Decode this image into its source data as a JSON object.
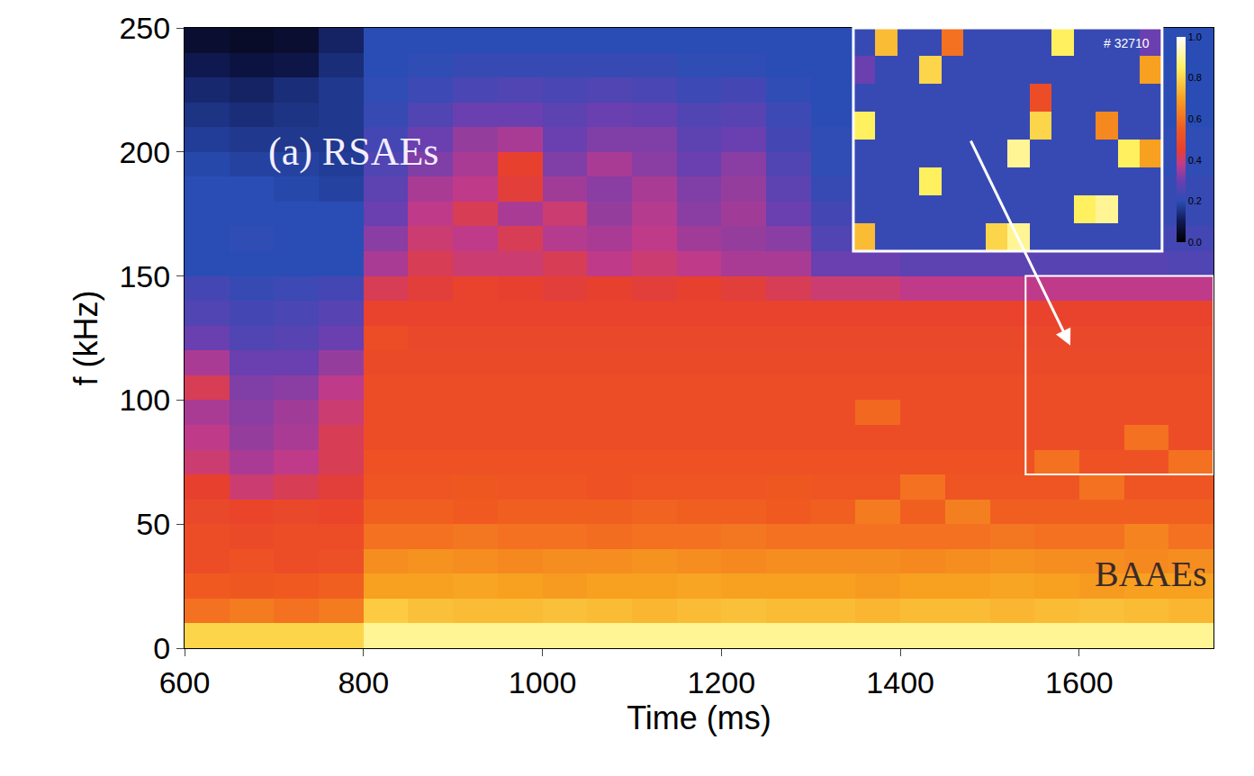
{
  "chart_data": [
    {
      "type": "heatmap",
      "x_label": "Time (ms)",
      "y_label": "f (kHz)",
      "x": [
        625,
        675,
        725,
        775,
        825,
        875,
        925,
        975,
        1025,
        1075,
        1125,
        1175,
        1225,
        1275,
        1325,
        1375,
        1425,
        1475,
        1525,
        1575,
        1625,
        1675,
        1725
      ],
      "y": [
        5,
        15,
        25,
        35,
        45,
        55,
        65,
        75,
        85,
        95,
        105,
        115,
        125,
        135,
        145,
        155,
        165,
        175,
        185,
        195,
        205,
        215,
        225,
        235,
        245
      ],
      "values": [
        [
          0.8,
          0.8,
          0.8,
          0.8,
          0.9,
          0.9,
          0.9,
          0.9,
          0.9,
          0.9,
          0.9,
          0.9,
          0.9,
          0.9,
          0.9,
          0.9,
          0.9,
          0.9,
          0.9,
          0.9,
          0.9,
          0.9,
          0.9
        ],
        [
          0.6,
          0.62,
          0.6,
          0.62,
          0.78,
          0.76,
          0.75,
          0.75,
          0.76,
          0.75,
          0.74,
          0.75,
          0.76,
          0.75,
          0.75,
          0.74,
          0.75,
          0.75,
          0.74,
          0.75,
          0.76,
          0.75,
          0.74
        ],
        [
          0.55,
          0.54,
          0.55,
          0.56,
          0.7,
          0.7,
          0.71,
          0.7,
          0.69,
          0.7,
          0.7,
          0.71,
          0.7,
          0.7,
          0.7,
          0.69,
          0.7,
          0.7,
          0.71,
          0.7,
          0.69,
          0.7,
          0.7
        ],
        [
          0.5,
          0.52,
          0.5,
          0.51,
          0.66,
          0.67,
          0.66,
          0.65,
          0.66,
          0.66,
          0.67,
          0.66,
          0.65,
          0.66,
          0.66,
          0.66,
          0.65,
          0.66,
          0.67,
          0.66,
          0.66,
          0.65,
          0.66
        ],
        [
          0.5,
          0.49,
          0.5,
          0.5,
          0.6,
          0.6,
          0.61,
          0.6,
          0.6,
          0.59,
          0.6,
          0.6,
          0.61,
          0.6,
          0.6,
          0.6,
          0.6,
          0.6,
          0.61,
          0.6,
          0.6,
          0.64,
          0.6
        ],
        [
          0.48,
          0.47,
          0.48,
          0.47,
          0.56,
          0.56,
          0.55,
          0.56,
          0.56,
          0.56,
          0.57,
          0.56,
          0.56,
          0.55,
          0.56,
          0.62,
          0.56,
          0.63,
          0.56,
          0.56,
          0.56,
          0.56,
          0.56
        ],
        [
          0.45,
          0.4,
          0.42,
          0.44,
          0.53,
          0.53,
          0.54,
          0.53,
          0.53,
          0.52,
          0.53,
          0.53,
          0.53,
          0.54,
          0.53,
          0.53,
          0.6,
          0.53,
          0.53,
          0.53,
          0.6,
          0.53,
          0.53
        ],
        [
          0.4,
          0.36,
          0.38,
          0.42,
          0.52,
          0.52,
          0.52,
          0.52,
          0.52,
          0.52,
          0.52,
          0.52,
          0.52,
          0.52,
          0.52,
          0.52,
          0.52,
          0.52,
          0.52,
          0.6,
          0.52,
          0.52,
          0.6
        ],
        [
          0.38,
          0.34,
          0.36,
          0.42,
          0.5,
          0.5,
          0.5,
          0.5,
          0.5,
          0.5,
          0.5,
          0.5,
          0.5,
          0.5,
          0.5,
          0.5,
          0.5,
          0.5,
          0.5,
          0.5,
          0.5,
          0.6,
          0.5
        ],
        [
          0.36,
          0.33,
          0.35,
          0.4,
          0.5,
          0.5,
          0.5,
          0.5,
          0.5,
          0.5,
          0.5,
          0.5,
          0.5,
          0.5,
          0.5,
          0.58,
          0.5,
          0.5,
          0.5,
          0.5,
          0.5,
          0.5,
          0.5
        ],
        [
          0.42,
          0.32,
          0.33,
          0.38,
          0.5,
          0.5,
          0.5,
          0.5,
          0.5,
          0.5,
          0.5,
          0.5,
          0.5,
          0.5,
          0.5,
          0.5,
          0.5,
          0.5,
          0.5,
          0.5,
          0.5,
          0.5,
          0.5
        ],
        [
          0.36,
          0.3,
          0.3,
          0.34,
          0.49,
          0.49,
          0.49,
          0.49,
          0.49,
          0.49,
          0.49,
          0.49,
          0.49,
          0.49,
          0.49,
          0.49,
          0.49,
          0.49,
          0.49,
          0.49,
          0.49,
          0.49,
          0.49
        ],
        [
          0.3,
          0.26,
          0.27,
          0.3,
          0.5,
          0.48,
          0.48,
          0.48,
          0.48,
          0.48,
          0.48,
          0.48,
          0.48,
          0.48,
          0.48,
          0.48,
          0.48,
          0.48,
          0.48,
          0.48,
          0.48,
          0.48,
          0.48
        ],
        [
          0.26,
          0.24,
          0.25,
          0.27,
          0.46,
          0.46,
          0.46,
          0.46,
          0.46,
          0.46,
          0.46,
          0.46,
          0.46,
          0.46,
          0.46,
          0.46,
          0.46,
          0.46,
          0.46,
          0.46,
          0.46,
          0.46,
          0.46
        ],
        [
          0.24,
          0.22,
          0.23,
          0.24,
          0.42,
          0.44,
          0.46,
          0.45,
          0.44,
          0.45,
          0.44,
          0.45,
          0.44,
          0.42,
          0.4,
          0.4,
          0.38,
          0.38,
          0.38,
          0.38,
          0.38,
          0.38,
          0.38
        ],
        [
          0.2,
          0.2,
          0.2,
          0.2,
          0.36,
          0.42,
          0.4,
          0.4,
          0.42,
          0.38,
          0.4,
          0.38,
          0.36,
          0.36,
          0.3,
          0.3,
          0.28,
          0.28,
          0.28,
          0.27,
          0.27,
          0.27,
          0.26
        ],
        [
          0.2,
          0.21,
          0.2,
          0.2,
          0.33,
          0.4,
          0.38,
          0.42,
          0.37,
          0.36,
          0.38,
          0.35,
          0.34,
          0.33,
          0.26,
          0.25,
          0.25,
          0.24,
          0.24,
          0.24,
          0.24,
          0.24,
          0.24
        ],
        [
          0.2,
          0.2,
          0.2,
          0.2,
          0.3,
          0.38,
          0.42,
          0.36,
          0.4,
          0.34,
          0.37,
          0.33,
          0.35,
          0.3,
          0.24,
          0.23,
          0.23,
          0.22,
          0.22,
          0.22,
          0.22,
          0.22,
          0.22
        ],
        [
          0.2,
          0.2,
          0.19,
          0.18,
          0.28,
          0.36,
          0.38,
          0.44,
          0.35,
          0.33,
          0.36,
          0.32,
          0.34,
          0.28,
          0.22,
          0.22,
          0.22,
          0.22,
          0.22,
          0.22,
          0.22,
          0.22,
          0.22
        ],
        [
          0.19,
          0.18,
          0.18,
          0.17,
          0.26,
          0.32,
          0.36,
          0.45,
          0.32,
          0.36,
          0.33,
          0.3,
          0.33,
          0.26,
          0.21,
          0.21,
          0.21,
          0.21,
          0.21,
          0.21,
          0.21,
          0.21,
          0.21
        ],
        [
          0.17,
          0.16,
          0.16,
          0.16,
          0.24,
          0.3,
          0.34,
          0.36,
          0.3,
          0.32,
          0.32,
          0.28,
          0.3,
          0.24,
          0.21,
          0.21,
          0.21,
          0.21,
          0.21,
          0.21,
          0.21,
          0.21,
          0.21
        ],
        [
          0.15,
          0.14,
          0.15,
          0.16,
          0.22,
          0.26,
          0.3,
          0.3,
          0.28,
          0.3,
          0.29,
          0.26,
          0.27,
          0.23,
          0.2,
          0.2,
          0.2,
          0.2,
          0.2,
          0.2,
          0.2,
          0.2,
          0.2
        ],
        [
          0.13,
          0.12,
          0.14,
          0.16,
          0.21,
          0.23,
          0.25,
          0.26,
          0.25,
          0.26,
          0.25,
          0.23,
          0.24,
          0.21,
          0.2,
          0.2,
          0.2,
          0.2,
          0.2,
          0.2,
          0.2,
          0.2,
          0.2
        ],
        [
          0.1,
          0.08,
          0.09,
          0.14,
          0.2,
          0.21,
          0.22,
          0.22,
          0.22,
          0.22,
          0.22,
          0.21,
          0.21,
          0.2,
          0.2,
          0.2,
          0.2,
          0.2,
          0.2,
          0.2,
          0.2,
          0.2,
          0.2
        ],
        [
          0.06,
          0.05,
          0.06,
          0.12,
          0.2,
          0.2,
          0.2,
          0.2,
          0.2,
          0.2,
          0.2,
          0.2,
          0.2,
          0.2,
          0.2,
          0.2,
          0.2,
          0.2,
          0.2,
          0.2,
          0.2,
          0.2,
          0.2
        ]
      ],
      "xlim": [
        600,
        1750
      ],
      "ylim": [
        0,
        250
      ],
      "xticks": [
        600,
        800,
        1000,
        1200,
        1400,
        1600
      ],
      "yticks": [
        0,
        50,
        100,
        150,
        200,
        250
      ],
      "annotations": [
        "(a) RSAEs",
        "BAAEs"
      ]
    },
    {
      "type": "heatmap",
      "x": [
        1547.5,
        1562.5,
        1577.5,
        1592.5,
        1607.5,
        1622.5,
        1637.5,
        1652.5,
        1667.5,
        1682.5,
        1697.5,
        1712.5,
        1727.5,
        1742.5
      ],
      "y": [
        75,
        85,
        95,
        105,
        115,
        125,
        135,
        145
      ],
      "values": [
        [
          0.75,
          0.22,
          0.22,
          0.22,
          0.22,
          0.22,
          0.8,
          0.9,
          0.22,
          0.22,
          0.22,
          0.22,
          0.22,
          0.22
        ],
        [
          0.22,
          0.22,
          0.22,
          0.22,
          0.22,
          0.22,
          0.22,
          0.22,
          0.22,
          0.22,
          0.85,
          0.9,
          0.22,
          0.22
        ],
        [
          0.22,
          0.22,
          0.22,
          0.85,
          0.22,
          0.22,
          0.22,
          0.22,
          0.22,
          0.22,
          0.22,
          0.22,
          0.22,
          0.22
        ],
        [
          0.22,
          0.22,
          0.22,
          0.22,
          0.22,
          0.22,
          0.22,
          0.9,
          0.22,
          0.22,
          0.22,
          0.22,
          0.85,
          0.7
        ],
        [
          0.85,
          0.22,
          0.22,
          0.22,
          0.22,
          0.22,
          0.22,
          0.22,
          0.8,
          0.22,
          0.22,
          0.65,
          0.22,
          0.22
        ],
        [
          0.22,
          0.22,
          0.22,
          0.22,
          0.22,
          0.22,
          0.22,
          0.22,
          0.5,
          0.22,
          0.22,
          0.22,
          0.22,
          0.22
        ],
        [
          0.3,
          0.22,
          0.22,
          0.8,
          0.22,
          0.22,
          0.22,
          0.22,
          0.22,
          0.22,
          0.22,
          0.22,
          0.22,
          0.7
        ],
        [
          0.22,
          0.75,
          0.22,
          0.22,
          0.6,
          0.22,
          0.22,
          0.22,
          0.22,
          0.85,
          0.22,
          0.22,
          0.22,
          0.3
        ]
      ],
      "xlim": [
        1540,
        1750
      ],
      "ylim": [
        70,
        150
      ],
      "tick_labels": false,
      "colorbar": {
        "range": [
          0,
          1
        ],
        "ticks": [
          {
            "value": 0,
            "label": "0.0"
          },
          0.2,
          0.4,
          0.6,
          0.8,
          {
            "value": 1,
            "label": "1.0"
          }
        ]
      },
      "annotations": [
        "# 32710"
      ]
    }
  ]
}
